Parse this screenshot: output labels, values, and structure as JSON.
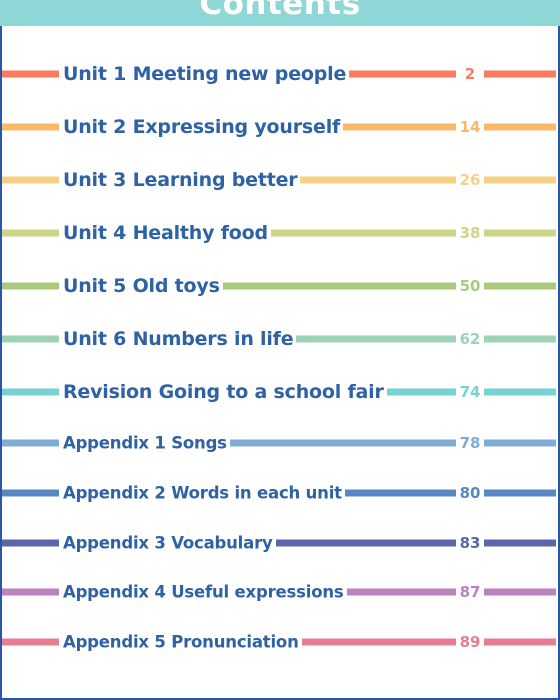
{
  "header": {
    "title": "Contents"
  },
  "entries": [
    {
      "title": "Unit 1  Meeting new people",
      "page": "2",
      "color": "#fa7b5d"
    },
    {
      "title": "Unit 2  Expressing yourself",
      "page": "14",
      "color": "#f9b966"
    },
    {
      "title": "Unit 3  Learning better",
      "page": "26",
      "color": "#f4d183"
    },
    {
      "title": "Unit 4  Healthy food",
      "page": "38",
      "color": "#cdd586"
    },
    {
      "title": "Unit 5  Old toys",
      "page": "50",
      "color": "#aacb7e"
    },
    {
      "title": "Unit 6  Numbers in life",
      "page": "62",
      "color": "#9dd3b9"
    },
    {
      "title": "Revision  Going to a school fair",
      "page": "74",
      "color": "#77d2d2"
    },
    {
      "title": "Appendix 1  Songs",
      "page": "78",
      "color": "#81abd5"
    },
    {
      "title": "Appendix 2  Words in each unit",
      "page": "80",
      "color": "#5788c3"
    },
    {
      "title": "Appendix 3  Vocabulary",
      "page": "83",
      "color": "#5a66a8"
    },
    {
      "title": "Appendix 4  Useful expressions",
      "page": "87",
      "color": "#bb82c0"
    },
    {
      "title": "Appendix 5  Pronunciation",
      "page": "89",
      "color": "#e77d91"
    }
  ]
}
